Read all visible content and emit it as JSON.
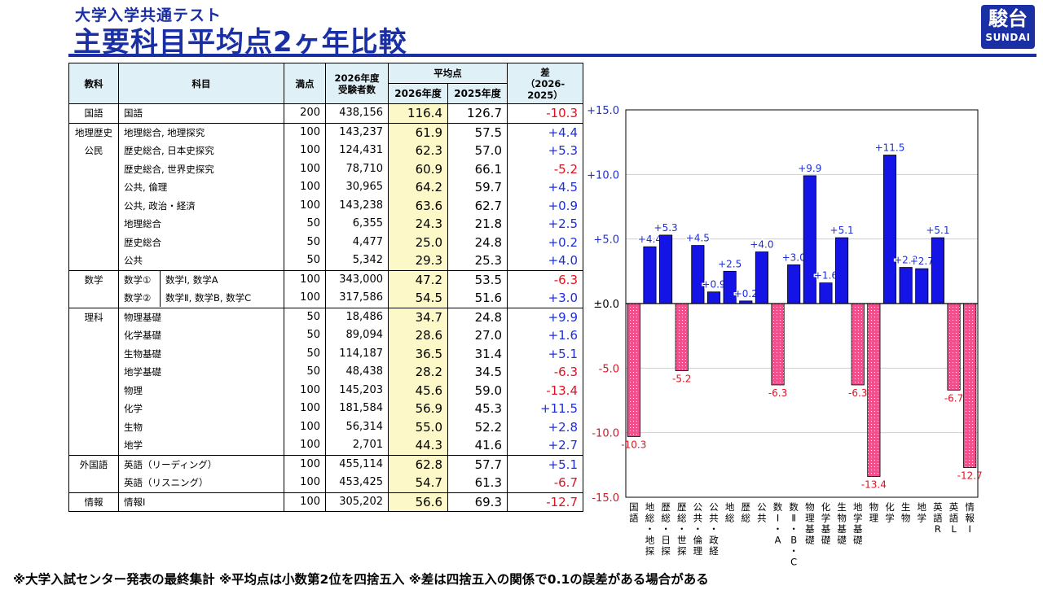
{
  "header": {
    "subtitle": "大学入学共通テスト",
    "title": "主要科目平均点2ヶ年比較",
    "logo_main": "駿台",
    "logo_sub": "SUNDAI"
  },
  "table": {
    "headers": {
      "kyoka": "教科",
      "kamoku": "科目",
      "manten": "満点",
      "examinees_l1": "2026年度",
      "examinees_l2": "受験者数",
      "avg": "平均点",
      "avg_2026": "2026年度",
      "avg_2025": "2025年度",
      "diff_l1": "差",
      "diff_l2": "（2026-",
      "diff_l3": "2025）"
    },
    "rows": [
      {
        "kyoka": "国語",
        "subject": "国語",
        "max": "200",
        "count": "438,156",
        "a26": "116.4",
        "a25": "126.7",
        "diff": "-10.3",
        "top": true,
        "span": 1
      },
      {
        "kyoka": "地理歴史",
        "subject": "地理総合, 地理探究",
        "max": "100",
        "count": "143,237",
        "a26": "61.9",
        "a25": "57.5",
        "diff": "+4.4",
        "top": true,
        "span": 9
      },
      {
        "kyoka": "公民",
        "subject": "歴史総合, 日本史探究",
        "max": "100",
        "count": "124,431",
        "a26": "62.3",
        "a25": "57.0",
        "diff": "+5.3"
      },
      {
        "kyoka": "",
        "subject": "歴史総合, 世界史探究",
        "max": "100",
        "count": "78,710",
        "a26": "60.9",
        "a25": "66.1",
        "diff": "-5.2"
      },
      {
        "kyoka": "",
        "subject": "公共, 倫理",
        "max": "100",
        "count": "30,965",
        "a26": "64.2",
        "a25": "59.7",
        "diff": "+4.5"
      },
      {
        "kyoka": "",
        "subject": "公共, 政治・経済",
        "max": "100",
        "count": "143,238",
        "a26": "63.6",
        "a25": "62.7",
        "diff": "+0.9"
      },
      {
        "kyoka": "",
        "subject": "地理総合",
        "max": "50",
        "count": "6,355",
        "a26": "24.3",
        "a25": "21.8",
        "diff": "+2.5"
      },
      {
        "kyoka": "",
        "subject": "歴史総合",
        "max": "50",
        "count": "4,477",
        "a26": "25.0",
        "a25": "24.8",
        "diff": "+0.2"
      },
      {
        "kyoka": "",
        "subject": "公共",
        "max": "50",
        "count": "5,342",
        "a26": "29.3",
        "a25": "25.3",
        "diff": "+4.0"
      },
      {
        "kyoka": "数学",
        "subject_a": "数学①",
        "subject": "数学Ⅰ, 数学A",
        "max": "100",
        "count": "343,000",
        "a26": "47.2",
        "a25": "53.5",
        "diff": "-6.3",
        "top": true
      },
      {
        "kyoka": "",
        "subject_a": "数学②",
        "subject": "数学Ⅱ, 数学B, 数学C",
        "max": "100",
        "count": "317,586",
        "a26": "54.5",
        "a25": "51.6",
        "diff": "+3.0"
      },
      {
        "kyoka": "理科",
        "subject": "物理基礎",
        "max": "50",
        "count": "18,486",
        "a26": "34.7",
        "a25": "24.8",
        "diff": "+9.9",
        "top": true
      },
      {
        "kyoka": "",
        "subject": "化学基礎",
        "max": "50",
        "count": "89,094",
        "a26": "28.6",
        "a25": "27.0",
        "diff": "+1.6"
      },
      {
        "kyoka": "",
        "subject": "生物基礎",
        "max": "50",
        "count": "114,187",
        "a26": "36.5",
        "a25": "31.4",
        "diff": "+5.1"
      },
      {
        "kyoka": "",
        "subject": "地学基礎",
        "max": "50",
        "count": "48,438",
        "a26": "28.2",
        "a25": "34.5",
        "diff": "-6.3"
      },
      {
        "kyoka": "",
        "subject": "物理",
        "max": "100",
        "count": "145,203",
        "a26": "45.6",
        "a25": "59.0",
        "diff": "-13.4"
      },
      {
        "kyoka": "",
        "subject": "化学",
        "max": "100",
        "count": "181,584",
        "a26": "56.9",
        "a25": "45.3",
        "diff": "+11.5"
      },
      {
        "kyoka": "",
        "subject": "生物",
        "max": "100",
        "count": "56,314",
        "a26": "55.0",
        "a25": "52.2",
        "diff": "+2.8"
      },
      {
        "kyoka": "",
        "subject": "地学",
        "max": "100",
        "count": "2,701",
        "a26": "44.3",
        "a25": "41.6",
        "diff": "+2.7"
      },
      {
        "kyoka": "外国語",
        "subject": "英語（リーディング）",
        "max": "100",
        "count": "455,114",
        "a26": "62.8",
        "a25": "57.7",
        "diff": "+5.1",
        "top": true
      },
      {
        "kyoka": "",
        "subject": "英語（リスニング）",
        "max": "100",
        "count": "453,425",
        "a26": "54.7",
        "a25": "61.3",
        "diff": "-6.7"
      },
      {
        "kyoka": "情報",
        "subject": "情報Ⅰ",
        "max": "100",
        "count": "305,202",
        "a26": "56.6",
        "a25": "69.3",
        "diff": "-12.7",
        "top": true
      }
    ]
  },
  "chart_data": {
    "type": "bar",
    "categories": [
      "国語",
      "地総・地探",
      "歴総・日探",
      "歴総・世探",
      "公共・倫理",
      "公共・政経",
      "地総",
      "歴総",
      "公共",
      "数ⅠA",
      "数ⅡBC",
      "物理基礎",
      "化学基礎",
      "生物基礎",
      "地学基礎",
      "物理",
      "化学",
      "生物",
      "地学",
      "英語R",
      "英語L",
      "情報Ⅰ"
    ],
    "category_labels_vertical": [
      [
        "国",
        "語"
      ],
      [
        "地",
        "総",
        "・",
        "地",
        "探"
      ],
      [
        "歴",
        "総",
        "・",
        "日",
        "探"
      ],
      [
        "歴",
        "総",
        "・",
        "世",
        "探"
      ],
      [
        "公",
        "共",
        "・",
        "倫",
        "理"
      ],
      [
        "公",
        "共",
        "・",
        "政",
        "経"
      ],
      [
        "地",
        "総"
      ],
      [
        "歴",
        "総"
      ],
      [
        "公",
        "共"
      ],
      [
        "数",
        "Ⅰ",
        "・",
        "A"
      ],
      [
        "数",
        "Ⅱ",
        "・",
        "B",
        "・",
        "C"
      ],
      [
        "物",
        "理",
        "基",
        "礎"
      ],
      [
        "化",
        "学",
        "基",
        "礎"
      ],
      [
        "生",
        "物",
        "基",
        "礎"
      ],
      [
        "地",
        "学",
        "基",
        "礎"
      ],
      [
        "物",
        "理"
      ],
      [
        "化",
        "学"
      ],
      [
        "生",
        "物"
      ],
      [
        "地",
        "学"
      ],
      [
        "英",
        "語",
        "R"
      ],
      [
        "英",
        "語",
        "L"
      ],
      [
        "情",
        "報",
        "Ⅰ"
      ]
    ],
    "values": [
      -10.3,
      4.4,
      5.3,
      -5.2,
      4.5,
      0.9,
      2.5,
      0.2,
      4.0,
      -6.3,
      3.0,
      9.9,
      1.6,
      5.1,
      -6.3,
      -13.4,
      11.5,
      2.8,
      2.7,
      5.1,
      -6.7,
      -12.7
    ],
    "value_labels": [
      "-10.3",
      "+4.4",
      "+5.3",
      "-5.2",
      "+4.5",
      "+0.9",
      "+2.5",
      "+0.2",
      "+4.0",
      "-6.3",
      "+3.0",
      "+9.9",
      "+1.6",
      "+5.1",
      "-6.3",
      "-13.4",
      "+11.5",
      "+2.8",
      "+2.7",
      "+5.1",
      "-6.7",
      "-12.7"
    ],
    "ylim": [
      -15,
      15
    ],
    "yticks": [
      15,
      10,
      5,
      0,
      -5,
      -10,
      -15
    ],
    "ytick_labels": [
      "+15.0",
      "+10.0",
      "+5.0",
      "±0.0",
      "-5.0",
      "-10.0",
      "-15.0"
    ],
    "grid": true,
    "colors": {
      "positive": "#1414e6",
      "negative": "#f0508c",
      "pos_text": "#1c2fd8",
      "neg_text": "#e0121f"
    }
  },
  "footnote": "※大学入試センター発表の最終集計 ※平均点は小数第2位を四捨五入 ※差は四捨五入の関係で0.1の誤差がある場合がある"
}
